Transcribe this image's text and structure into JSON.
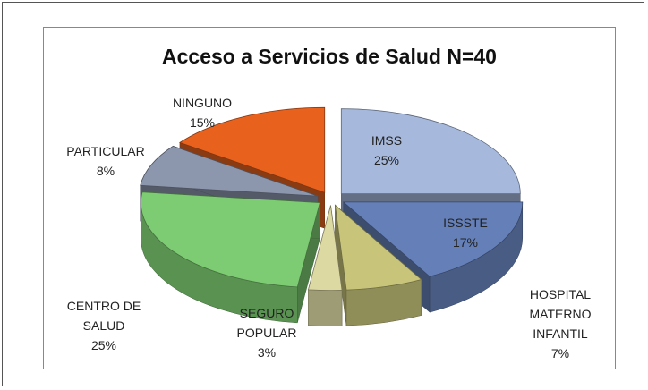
{
  "chart_data": {
    "type": "pie",
    "title": "Acceso a Servicios de Salud N=40",
    "categories": [
      "IMSS",
      "ISSSTE",
      "HOSPITAL MATERNO INFANTIL",
      "SEGURO POPULAR",
      "CENTRO DE SALUD",
      "PARTICULAR",
      "NINGUNO"
    ],
    "values": [
      25,
      17,
      7,
      3,
      25,
      8,
      15
    ],
    "value_labels": [
      "25%",
      "17%",
      "7%",
      "3%",
      "25%",
      "8%",
      "15%"
    ],
    "colors": [
      "#a6b9dd",
      "#6580b8",
      "#c8c57a",
      "#dcd9a2",
      "#7dcb72",
      "#8c96ad",
      "#e8621e"
    ]
  }
}
